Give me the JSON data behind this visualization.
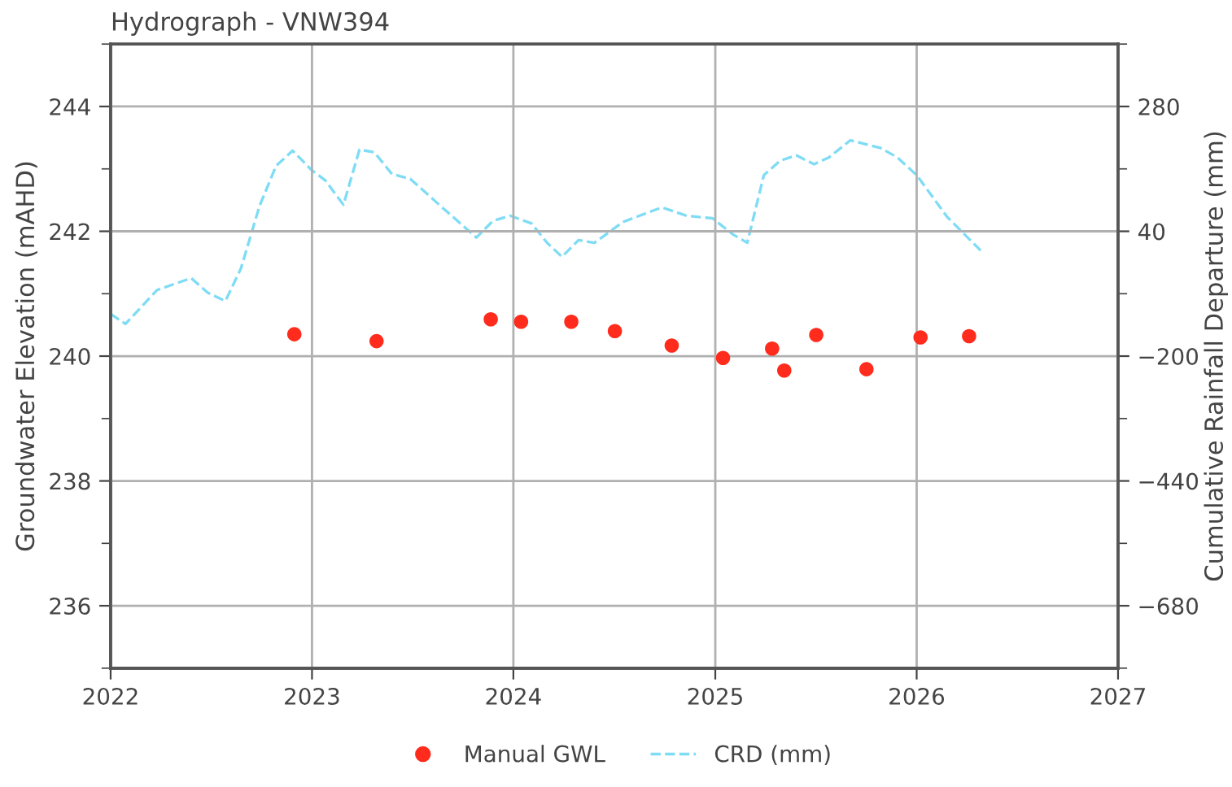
{
  "chart_data": {
    "type": "scatter",
    "title": "Hydrograph - VNW394",
    "ylabel": "Groundwater Elevation (mAHD)",
    "y2label": "Cumulative Rainfall Departure (mm)",
    "series": [
      {
        "name": "Manual GWL",
        "color": "#ff2b1c",
        "marker": "circle",
        "x": [
          "2022-11-30",
          "2023-04-28",
          "2023-11-21",
          "2024-01-15",
          "2024-04-15",
          "2024-07-03",
          "2024-10-14",
          "2025-01-15",
          "2025-04-14",
          "2025-05-06",
          "2025-07-03",
          "2025-10-02",
          "2026-01-08",
          "2026-04-06"
        ],
        "values": [
          240.35,
          240.24,
          240.59,
          240.55,
          240.55,
          240.4,
          240.17,
          239.97,
          240.12,
          239.77,
          240.34,
          239.79,
          240.3,
          240.32
        ]
      },
      {
        "name": "CRD (mm)",
        "type": "line",
        "axis": "y2",
        "color": "#7fdcf5",
        "line_style": "dashed",
        "marker": "none",
        "x": [
          "2022-01-01",
          "2022-01-28",
          "2022-03-26",
          "2022-05-27",
          "2022-06-26",
          "2022-07-28",
          "2022-08-25",
          "2022-09-28",
          "2022-10-28",
          "2022-11-27",
          "2022-12-31",
          "2023-01-25",
          "2023-02-27",
          "2023-03-28",
          "2023-04-24",
          "2023-05-26",
          "2023-06-28",
          "2023-08-28",
          "2023-10-26",
          "2023-11-25",
          "2023-12-26",
          "2024-02-03",
          "2024-03-02",
          "2024-03-29",
          "2024-04-28",
          "2024-05-27",
          "2024-07-18",
          "2024-09-26",
          "2024-11-10",
          "2024-12-27",
          "2025-02-02",
          "2025-02-28",
          "2025-03-30",
          "2025-04-29",
          "2025-05-28",
          "2025-06-29",
          "2025-07-26",
          "2025-09-03",
          "2025-10-28",
          "2025-11-27",
          "2026-01-01",
          "2026-02-25",
          "2026-04-27"
        ],
        "values": [
          -119,
          -138,
          -73,
          -50,
          -78,
          -94,
          -32,
          89,
          166,
          195,
          158,
          138,
          91,
          197,
          192,
          150,
          141,
          83,
          28,
          60,
          70,
          55,
          18,
          -9,
          23,
          18,
          58,
          86,
          70,
          65,
          34,
          18,
          148,
          176,
          186,
          169,
          182,
          215,
          200,
          182,
          148,
          68,
          3
        ]
      }
    ],
    "xlim": [
      "2022-01-01",
      "2027-01-01"
    ],
    "xticks": [
      {
        "value": "2022-01-01",
        "label": "2022"
      },
      {
        "value": "2023-01-01",
        "label": "2023"
      },
      {
        "value": "2024-01-01",
        "label": "2024"
      },
      {
        "value": "2025-01-01",
        "label": "2025"
      },
      {
        "value": "2026-01-01",
        "label": "2026"
      },
      {
        "value": "2027-01-01",
        "label": "2027"
      }
    ],
    "ylim": [
      235,
      245
    ],
    "yticks": [
      {
        "value": 235,
        "label": null
      },
      236,
      {
        "value": 237,
        "label": null
      },
      238,
      {
        "value": 239,
        "label": null
      },
      240,
      {
        "value": 241,
        "label": null
      },
      242,
      {
        "value": 243,
        "label": null
      },
      244,
      {
        "value": 245,
        "label": null
      }
    ],
    "y2lim": [
      -800,
      400
    ],
    "y2ticks": [
      {
        "value": -800,
        "label": null
      },
      {
        "value": -680,
        "label": "−680"
      },
      {
        "value": -560,
        "label": null
      },
      {
        "value": -440,
        "label": "−440"
      },
      {
        "value": -320,
        "label": null
      },
      {
        "value": -200,
        "label": "−200"
      },
      {
        "value": -80,
        "label": null
      },
      40,
      {
        "value": 160,
        "label": null
      },
      280,
      {
        "value": 400,
        "label": null
      }
    ],
    "grid": true,
    "legend": "bottom"
  }
}
